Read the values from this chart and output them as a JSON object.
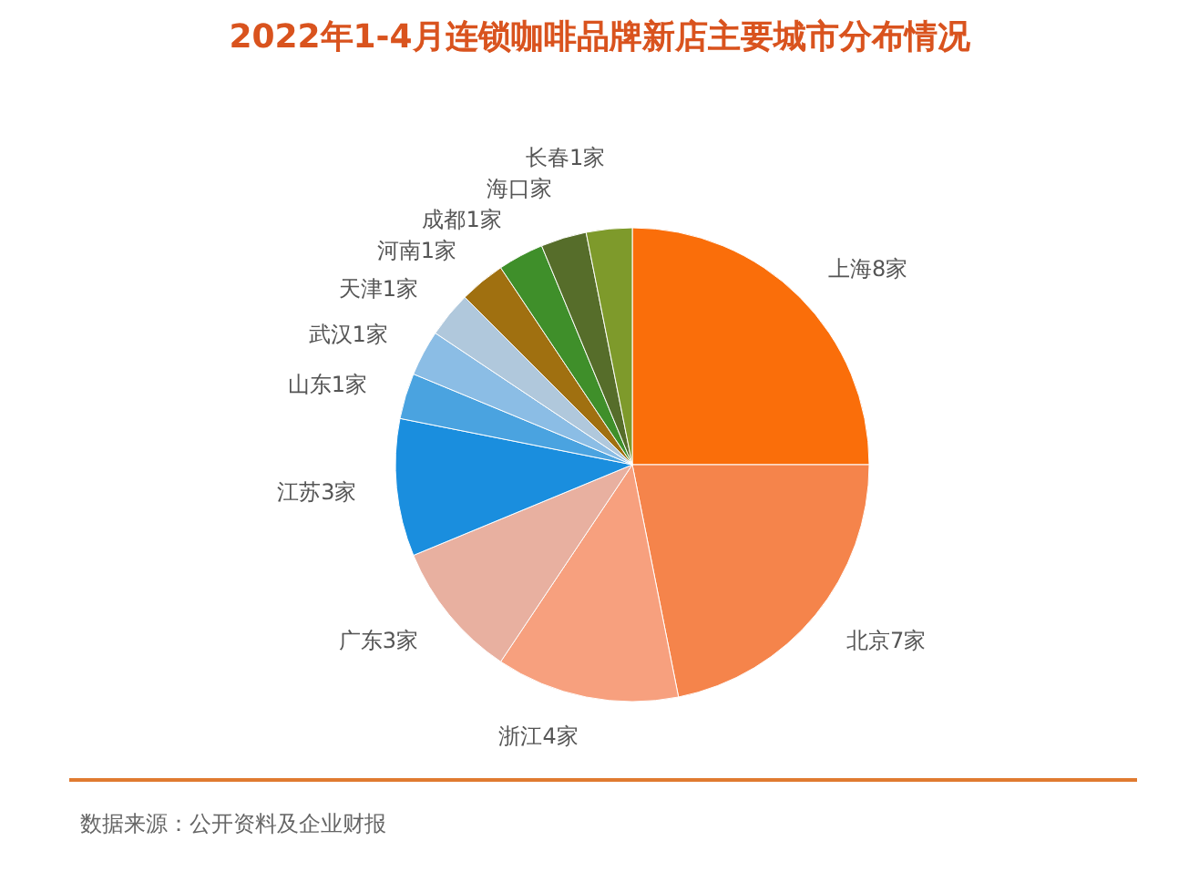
{
  "chart_data": {
    "type": "pie",
    "title": "2022年1-4月连锁咖啡品牌新店主要城市分布情况",
    "categories": [
      "上海8家",
      "北京7家",
      "浙江4家",
      "广东3家",
      "江苏3家",
      "山东1家",
      "武汉1家",
      "天津1家",
      "河南1家",
      "成都1家",
      "海口家",
      "长春1家"
    ],
    "values": [
      8,
      7,
      4,
      3,
      3,
      1,
      1,
      1,
      1,
      1,
      1,
      1
    ],
    "colors": [
      "#fa6e0a",
      "#f5844b",
      "#f7a07e",
      "#e8b0a0",
      "#1a8ede",
      "#4aa3e0",
      "#8bbde5",
      "#b0c8dc",
      "#a07010",
      "#3f8f2a",
      "#566d2a",
      "#7e9a2b"
    ],
    "annotations": [
      "数据来源：公开资料及企业财报"
    ]
  }
}
